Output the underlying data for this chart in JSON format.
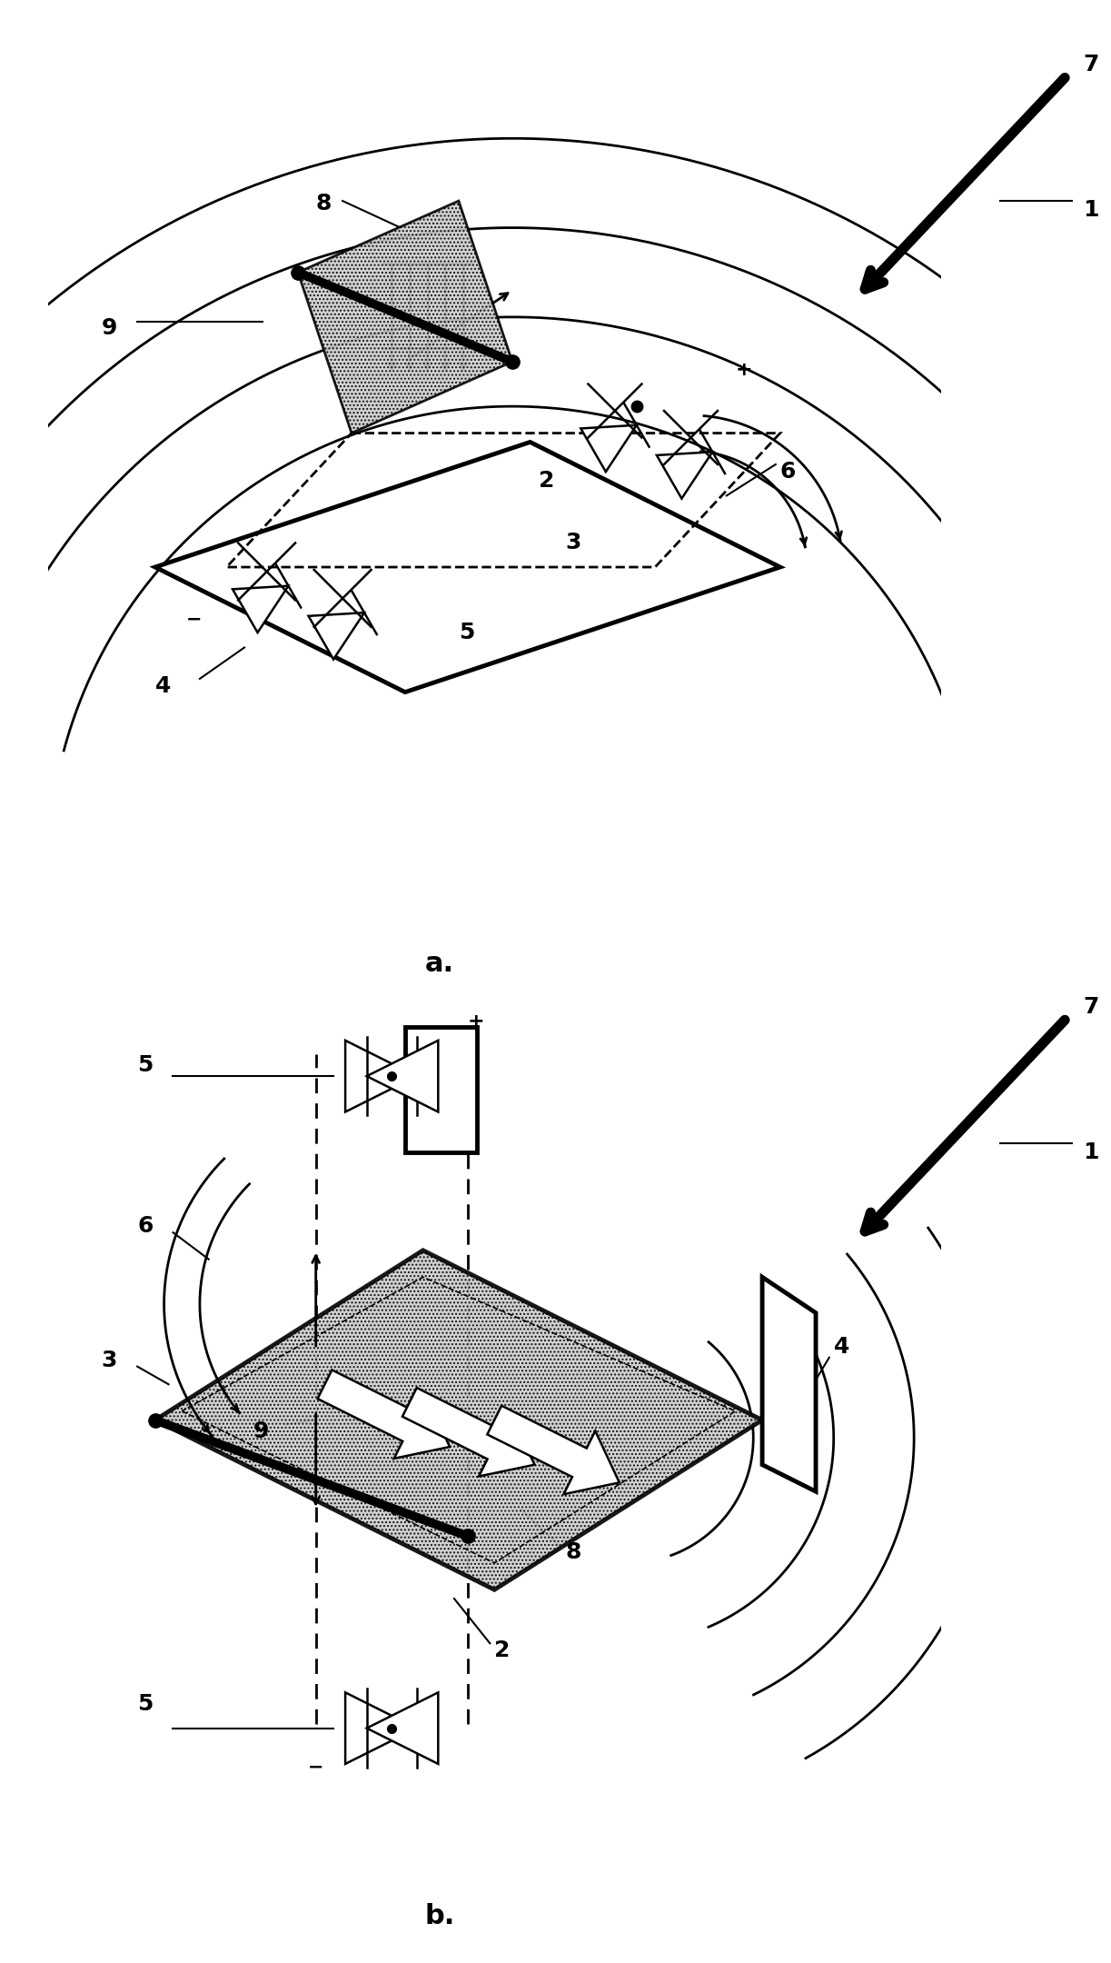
{
  "fig_width": 12.23,
  "fig_height": 21.6,
  "bg_color": "#ffffff",
  "lw": 2.0,
  "lw_thick": 3.5,
  "lw_bold": 6.0
}
